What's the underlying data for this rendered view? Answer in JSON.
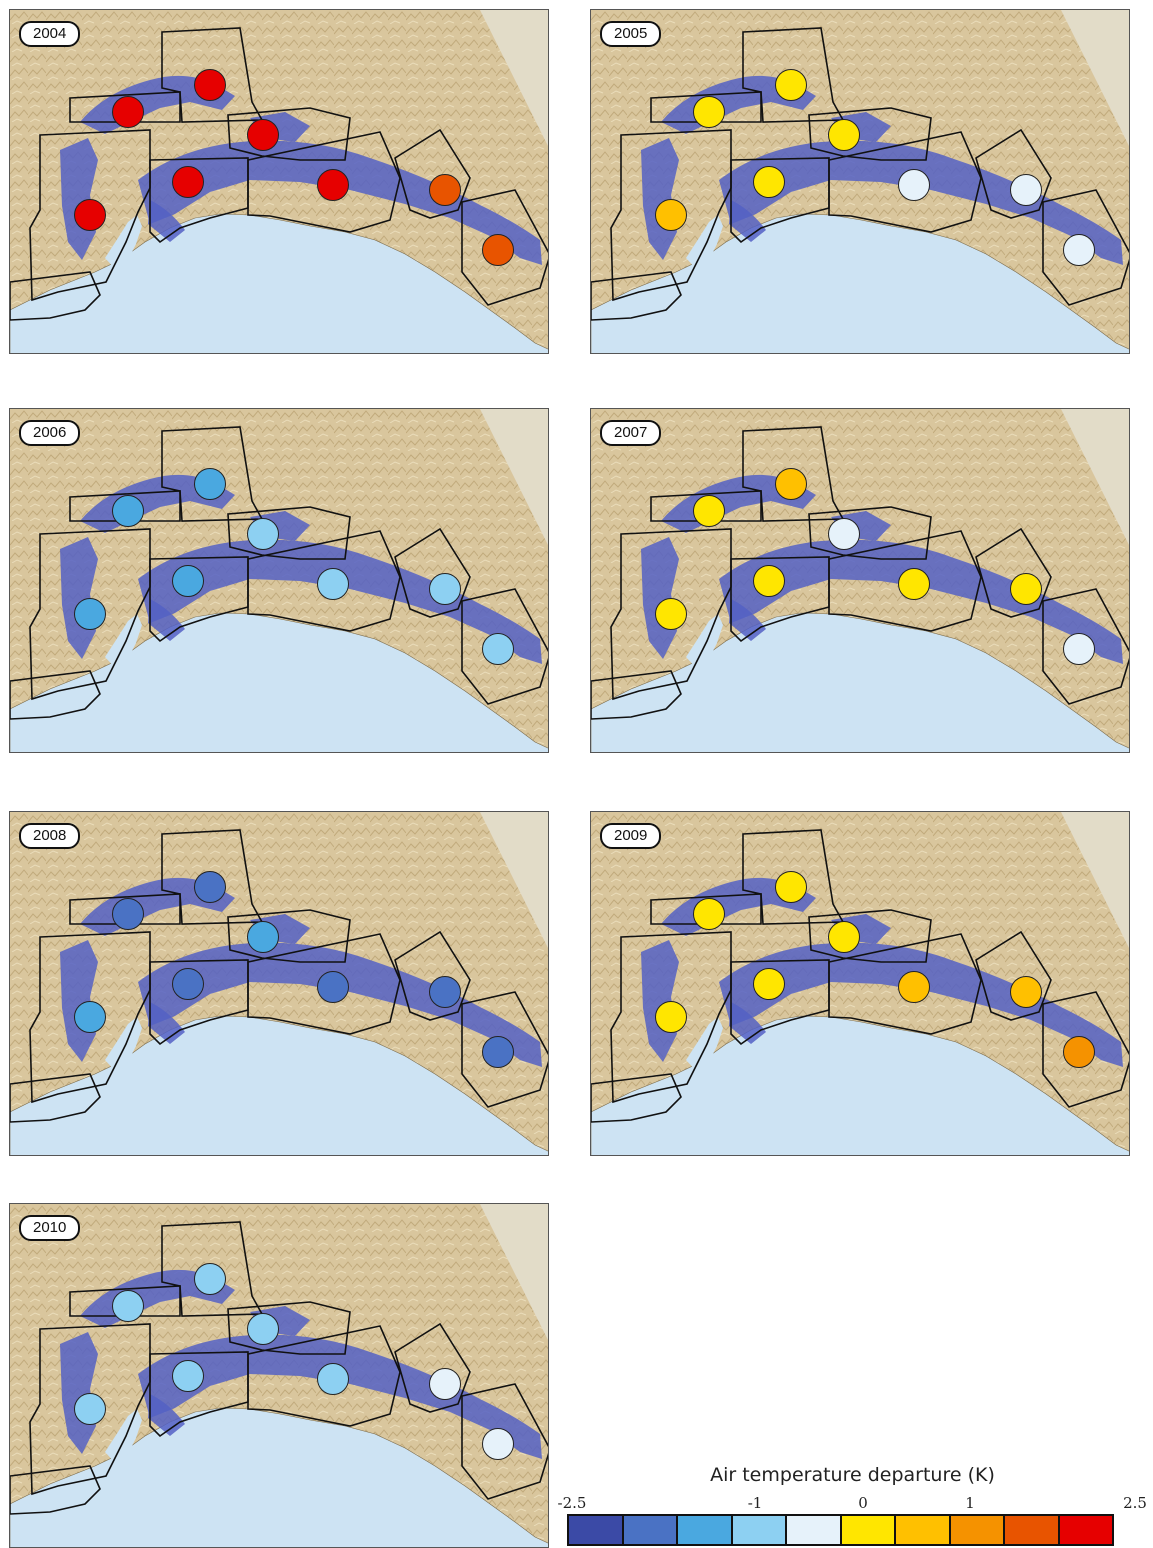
{
  "legend": {
    "title": "Air temperature departure (K)",
    "ticks": [
      "-2.5",
      "-1",
      "0",
      "1",
      "2.5"
    ],
    "colors": [
      "#3b4aa6",
      "#4a72c4",
      "#4aa8e0",
      "#8dd0f2",
      "#e6f2fa",
      "#ffe600",
      "#ffc000",
      "#f59200",
      "#e85400",
      "#e60000"
    ]
  },
  "panels": [
    {
      "year": "2004",
      "colors": [
        "#e60000",
        "#e60000",
        "#e60000",
        "#e60000",
        "#e60000",
        "#e60000",
        "#e85400",
        "#e85400"
      ]
    },
    {
      "year": "2005",
      "colors": [
        "#ffc000",
        "#ffe600",
        "#ffe600",
        "#ffe600",
        "#ffe600",
        "#e6f2fa",
        "#e6f2fa",
        "#e6f2fa"
      ]
    },
    {
      "year": "2006",
      "colors": [
        "#4aa8e0",
        "#4aa8e0",
        "#4aa8e0",
        "#8dd0f2",
        "#4aa8e0",
        "#8dd0f2",
        "#8dd0f2",
        "#8dd0f2"
      ]
    },
    {
      "year": "2007",
      "colors": [
        "#ffe600",
        "#ffe600",
        "#ffc000",
        "#e6f2fa",
        "#ffe600",
        "#ffe600",
        "#ffe600",
        "#e6f2fa"
      ]
    },
    {
      "year": "2008",
      "colors": [
        "#4aa8e0",
        "#4a72c4",
        "#4a72c4",
        "#4aa8e0",
        "#4a72c4",
        "#4a72c4",
        "#4a72c4",
        "#4a72c4"
      ]
    },
    {
      "year": "2009",
      "colors": [
        "#ffe600",
        "#ffe600",
        "#ffe600",
        "#ffe600",
        "#ffe600",
        "#ffc000",
        "#ffc000",
        "#f59200"
      ]
    },
    {
      "year": "2010",
      "colors": [
        "#8dd0f2",
        "#8dd0f2",
        "#8dd0f2",
        "#8dd0f2",
        "#8dd0f2",
        "#8dd0f2",
        "#e6f2fa",
        "#e6f2fa"
      ]
    }
  ]
}
